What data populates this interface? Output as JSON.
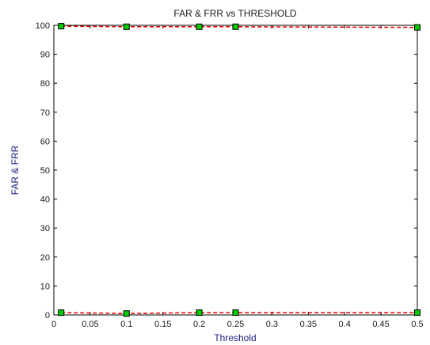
{
  "chart_data": {
    "type": "line",
    "title": "FAR & FRR vs THRESHOLD",
    "xlabel": "Threshold",
    "ylabel": "FAR & FRR",
    "xlim": [
      0,
      0.5
    ],
    "ylim": [
      0,
      100
    ],
    "xticks": [
      0,
      0.05,
      0.1,
      0.15,
      0.2,
      0.25,
      0.3,
      0.35,
      0.4,
      0.45,
      0.5
    ],
    "xtick_labels": [
      "0",
      "0.05",
      "0.1",
      "0.15",
      "0.2",
      "0.25",
      "0.3",
      "0.35",
      "0.4",
      "0.45",
      "0.5"
    ],
    "yticks": [
      0,
      10,
      20,
      30,
      40,
      50,
      60,
      70,
      80,
      90,
      100
    ],
    "ytick_labels": [
      "0",
      "10",
      "20",
      "30",
      "40",
      "50",
      "60",
      "70",
      "80",
      "90",
      "100"
    ],
    "grid": false,
    "legend": "none",
    "line_color": "#e00000",
    "line_style": "dashed",
    "marker_face": "#00cc00",
    "marker_edge": "#000000",
    "series": [
      {
        "x": [
          0.01,
          0.1,
          0.2,
          0.25,
          0.5
        ],
        "values": [
          99.7,
          99.5,
          99.5,
          99.5,
          99.3
        ]
      },
      {
        "x": [
          0.01,
          0.1,
          0.2,
          0.25,
          0.5
        ],
        "values": [
          0.8,
          0.5,
          0.8,
          0.8,
          0.8
        ]
      }
    ]
  }
}
